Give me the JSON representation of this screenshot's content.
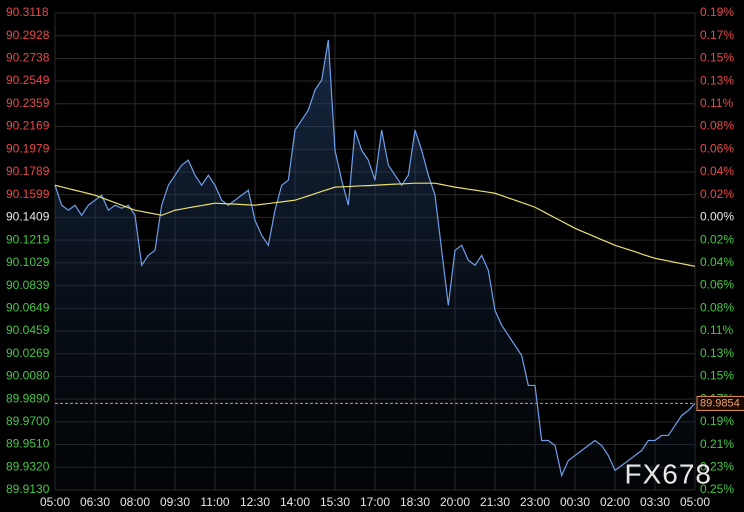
{
  "chart_data": {
    "type": "line",
    "watermark": "FX678",
    "x": [
      "05:00",
      null,
      null,
      null,
      null,
      null,
      "06:30",
      null,
      null,
      null,
      null,
      null,
      "08:00",
      null,
      null,
      null,
      null,
      null,
      "09:30",
      null,
      null,
      null,
      null,
      null,
      "11:00",
      null,
      null,
      null,
      null,
      null,
      "12:30",
      null,
      null,
      null,
      null,
      null,
      "14:00",
      null,
      null,
      null,
      null,
      null,
      "15:30",
      null,
      null,
      null,
      null,
      null,
      "17:00",
      null,
      null,
      null,
      null,
      null,
      "18:30",
      null,
      null,
      null,
      null,
      null,
      "20:00",
      null,
      null,
      null,
      null,
      null,
      "21:30",
      null,
      null,
      null,
      null,
      null,
      "23:00",
      null,
      null,
      null,
      null,
      null,
      "00:30",
      null,
      null,
      null,
      null,
      null,
      "02:00",
      null,
      null,
      null,
      null,
      null,
      "03:30",
      null,
      null,
      null,
      null,
      null,
      "05:00"
    ],
    "series": [
      {
        "color": "#6f9eea",
        "values": [
          90.1678,
          90.1511,
          90.1469,
          90.1511,
          90.1427,
          90.1511,
          90.1553,
          90.1595,
          90.1469,
          90.1511,
          90.1486,
          90.1511,
          90.1427,
          90.1009,
          90.1092,
          90.1134,
          90.1511,
          90.1678,
          90.1762,
          90.1846,
          90.1888,
          90.1762,
          90.1678,
          90.1762,
          90.1678,
          90.1553,
          90.1511,
          90.1553,
          90.1595,
          90.1637,
          90.1385,
          90.126,
          90.1176,
          90.1469,
          90.1678,
          90.172,
          90.2139,
          90.2222,
          90.2306,
          90.2474,
          90.2557,
          90.2892,
          90.1971,
          90.172,
          90.1511,
          90.2139,
          90.1971,
          90.1888,
          90.172,
          90.2139,
          90.1846,
          90.1762,
          90.1678,
          90.1762,
          90.2139,
          90.1971,
          90.1762,
          90.1595,
          90.1134,
          90.0674,
          90.1134,
          90.1176,
          90.1051,
          90.1009,
          90.1092,
          90.0967,
          90.0632,
          90.0507,
          90.0423,
          90.0339,
          90.0255,
          90.0004,
          90.0004,
          89.9544,
          89.9544,
          89.9502,
          89.9251,
          89.9377,
          89.9418,
          89.946,
          89.9502,
          89.9544,
          89.9502,
          89.9418,
          89.9293,
          89.9335,
          89.9377,
          89.9418,
          89.946,
          89.9544,
          89.9544,
          89.9586,
          89.9586,
          89.967,
          89.9753,
          89.9795,
          89.9854
        ]
      },
      {
        "color": "#e8e070",
        "values": [
          90.1678,
          90.1664,
          90.165,
          90.1636,
          90.1623,
          90.1609,
          90.1595,
          90.1574,
          90.1553,
          90.1532,
          90.1511,
          90.149,
          90.1469,
          90.1459,
          90.1448,
          90.1438,
          90.1427,
          90.1448,
          90.1469,
          90.1479,
          90.1489,
          90.1499,
          90.1508,
          90.1518,
          90.1528,
          90.1525,
          90.1522,
          90.152,
          90.1517,
          90.1514,
          90.1511,
          90.1518,
          90.1525,
          90.1532,
          90.1539,
          90.1546,
          90.1553,
          90.1571,
          90.1589,
          90.1607,
          90.1626,
          90.1644,
          90.1662,
          90.1665,
          90.1667,
          90.167,
          90.1673,
          90.1675,
          90.1678,
          90.1681,
          90.1684,
          90.1687,
          90.1689,
          90.1692,
          90.1695,
          90.1695,
          90.1695,
          90.1695,
          90.1684,
          90.1673,
          90.1662,
          90.1654,
          90.1645,
          90.1637,
          90.1628,
          90.162,
          90.1611,
          90.1592,
          90.1572,
          90.1553,
          90.1533,
          90.1514,
          90.1494,
          90.1465,
          90.1435,
          90.1406,
          90.1377,
          90.1347,
          90.1318,
          90.1294,
          90.1271,
          90.1247,
          90.1223,
          90.12,
          90.1176,
          90.1158,
          90.114,
          90.1122,
          90.1103,
          90.1085,
          90.1067,
          90.1056,
          90.1045,
          90.1033,
          90.1022,
          90.1011,
          90.1
        ]
      }
    ],
    "last_price": 89.9854,
    "ylim": [
      89.913,
      90.3118
    ],
    "yticks": [
      90.3118,
      90.2928,
      90.2738,
      90.2549,
      90.2359,
      90.2169,
      90.1979,
      90.1789,
      90.1599,
      90.1409,
      90.1219,
      90.1029,
      90.0839,
      90.0649,
      90.0459,
      90.0269,
      {
        "value": 90.008,
        "label": "90.0080"
      },
      {
        "value": 89.989,
        "label": "89.9890"
      },
      {
        "value": 89.97,
        "label": "89.9700"
      },
      {
        "value": 89.951,
        "label": "89.9510"
      },
      {
        "value": 89.932,
        "label": "89.9320"
      },
      {
        "value": 89.913,
        "label": "89.9130"
      }
    ],
    "y2lim": [
      -0.2528,
      0.1896
    ],
    "y2ticks": [
      {
        "value": 0.1896,
        "label": "0.19%"
      },
      {
        "value": 0.1685,
        "label": "0.17%"
      },
      {
        "value": 0.1475,
        "label": "0.15%"
      },
      {
        "value": 0.1264,
        "label": "0.13%"
      },
      {
        "value": 0.1053,
        "label": "0.11%"
      },
      {
        "value": 0.0843,
        "label": "0.08%"
      },
      {
        "value": 0.0632,
        "label": "0.06%"
      },
      {
        "value": 0.0421,
        "label": "0.04%"
      },
      {
        "value": 0.0211,
        "label": "0.02%"
      },
      {
        "value": 0,
        "label": "0.00%"
      },
      {
        "value": -0.0211,
        "label": "0.02%"
      },
      {
        "value": -0.0421,
        "label": "0.04%"
      },
      {
        "value": -0.0632,
        "label": "0.06%"
      },
      {
        "value": -0.0843,
        "label": "0.08%"
      },
      {
        "value": -0.1053,
        "label": "0.11%"
      },
      {
        "value": -0.1264,
        "label": "0.13%"
      },
      {
        "value": -0.1475,
        "label": "0.15%"
      },
      {
        "value": -0.1685,
        "label": "0.17%"
      },
      {
        "value": -0.1896,
        "label": "0.19%"
      },
      {
        "value": -0.2107,
        "label": "0.21%"
      },
      {
        "value": -0.2317,
        "label": "0.23%"
      },
      {
        "value": -0.2528,
        "label": "0.25%"
      }
    ],
    "grid": true,
    "up_color": "#e84848",
    "down_color": "#44c844",
    "flat_color": "#e8e8e8"
  }
}
